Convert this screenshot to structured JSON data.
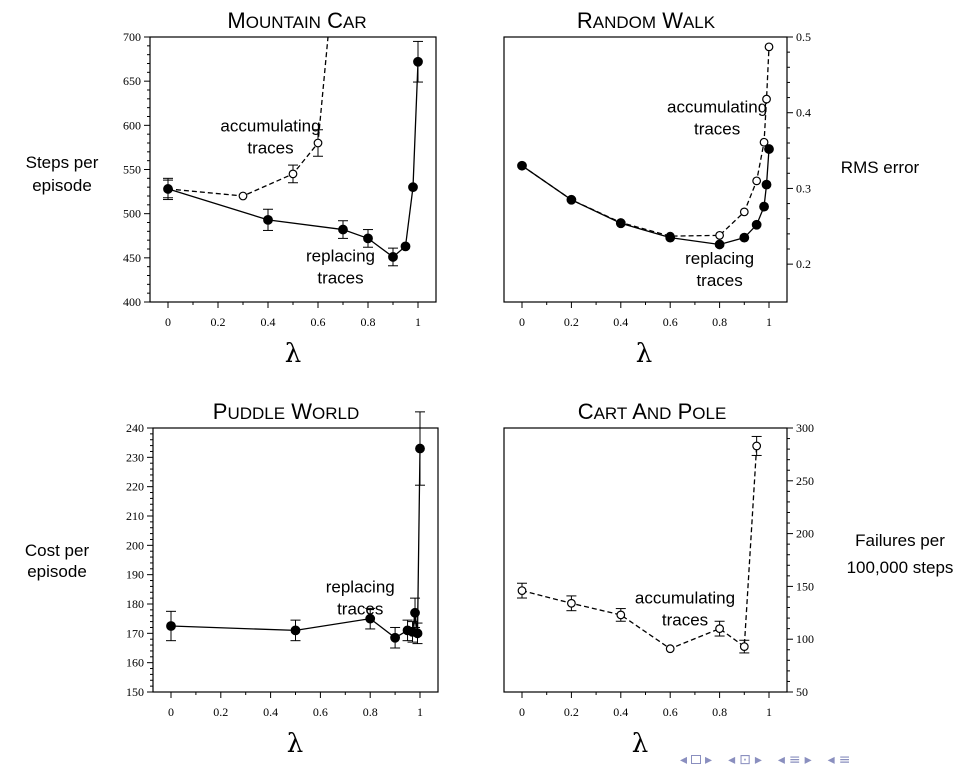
{
  "chart_data": [
    {
      "type": "line",
      "title": "Mountain Car",
      "xlabel": "λ",
      "ylabel_lines": [
        "Steps per",
        "episode"
      ],
      "xlim": [
        0,
        1
      ],
      "ylim": [
        400,
        700
      ],
      "x_ticks": [
        0,
        0.2,
        0.4,
        0.6,
        0.8,
        1
      ],
      "x_tick_labels": [
        "0",
        "0.2",
        "0.4",
        "0.6",
        "0.8",
        "1"
      ],
      "y_ticks": [
        400,
        450,
        500,
        550,
        600,
        650,
        700
      ],
      "y_tick_labels": [
        "400",
        "450",
        "500",
        "550",
        "600",
        "650",
        "700"
      ],
      "y_axis_side": "left",
      "series": [
        {
          "style": "dashed-open",
          "points": [
            [
              0,
              528
            ],
            [
              0.3,
              520
            ],
            [
              0.5,
              545
            ],
            [
              0.6,
              580
            ]
          ],
          "error": [
            10,
            0,
            10,
            15
          ],
          "continues_to": [
            0.64,
            700
          ]
        },
        {
          "style": "solid-filled",
          "points": [
            [
              0,
              528
            ],
            [
              0.4,
              493
            ],
            [
              0.7,
              482
            ],
            [
              0.8,
              472
            ],
            [
              0.9,
              451
            ],
            [
              0.95,
              463
            ],
            [
              0.98,
              530
            ],
            [
              1,
              672
            ]
          ],
          "error": [
            12,
            12,
            10,
            10,
            10,
            0,
            0,
            23
          ]
        }
      ],
      "annotations": [
        {
          "lines": [
            "accumulating",
            "traces"
          ],
          "x": 0.41,
          "y": 593
        },
        {
          "lines": [
            "replacing",
            "traces"
          ],
          "x": 0.69,
          "y": 446
        }
      ]
    },
    {
      "type": "line",
      "title": "Random Walk",
      "xlabel": "λ",
      "ylabel_lines": [
        "RMS error"
      ],
      "xlim": [
        0,
        1
      ],
      "ylim": [
        0.15,
        0.5
      ],
      "x_ticks": [
        0,
        0.2,
        0.4,
        0.6,
        0.8,
        1
      ],
      "x_tick_labels": [
        "0",
        "0.2",
        "0.4",
        "0.6",
        "0.8",
        "1"
      ],
      "y_ticks": [
        0.2,
        0.3,
        0.4,
        0.5
      ],
      "y_tick_labels": [
        "0.2",
        "0.3",
        "0.4",
        "0.5"
      ],
      "y_axis_side": "right",
      "series": [
        {
          "style": "dashed-open",
          "points": [
            [
              0,
              0.33
            ],
            [
              0.2,
              0.285
            ],
            [
              0.4,
              0.255
            ],
            [
              0.6,
              0.237
            ],
            [
              0.8,
              0.238
            ],
            [
              0.9,
              0.269
            ],
            [
              0.95,
              0.31
            ],
            [
              0.98,
              0.361
            ],
            [
              0.99,
              0.418
            ],
            [
              1,
              0.487
            ]
          ],
          "error": [
            0,
            0,
            0,
            0,
            0,
            0,
            0,
            0,
            0,
            0
          ]
        },
        {
          "style": "solid-filled",
          "points": [
            [
              0,
              0.33
            ],
            [
              0.2,
              0.285
            ],
            [
              0.4,
              0.254
            ],
            [
              0.6,
              0.235
            ],
            [
              0.8,
              0.226
            ],
            [
              0.9,
              0.235
            ],
            [
              0.95,
              0.252
            ],
            [
              0.98,
              0.276
            ],
            [
              0.99,
              0.305
            ],
            [
              1,
              0.352
            ]
          ],
          "error": [
            0,
            0,
            0,
            0,
            0,
            0,
            0,
            0,
            0,
            0
          ]
        }
      ],
      "annotations": [
        {
          "lines": [
            "accumulating",
            "traces"
          ],
          "x": 0.79,
          "y": 0.4
        },
        {
          "lines": [
            "replacing",
            "traces"
          ],
          "x": 0.8,
          "y": 0.2
        }
      ]
    },
    {
      "type": "line",
      "title": "Puddle World",
      "xlabel": "λ",
      "ylabel_lines": [
        "Cost per",
        "episode"
      ],
      "xlim": [
        0,
        1
      ],
      "ylim": [
        150,
        240
      ],
      "x_ticks": [
        0,
        0.2,
        0.4,
        0.6,
        0.8,
        1
      ],
      "x_tick_labels": [
        "0",
        "0.2",
        "0.4",
        "0.6",
        "0.8",
        "1"
      ],
      "y_ticks": [
        150,
        160,
        170,
        180,
        190,
        200,
        210,
        220,
        230,
        240
      ],
      "y_tick_labels": [
        "150",
        "160",
        "170",
        "180",
        "190",
        "200",
        "210",
        "220",
        "230",
        "240"
      ],
      "y_axis_side": "left",
      "series": [
        {
          "style": "solid-filled",
          "points": [
            [
              0,
              172.5
            ],
            [
              0.5,
              171
            ],
            [
              0.8,
              175
            ],
            [
              0.9,
              168.5
            ],
            [
              0.95,
              171
            ],
            [
              0.97,
              170.5
            ],
            [
              0.98,
              177
            ],
            [
              0.99,
              170
            ],
            [
              1,
              233
            ]
          ],
          "error": [
            5,
            3.5,
            3.5,
            3.5,
            3.5,
            3.5,
            5,
            3.5,
            12.5
          ]
        }
      ],
      "annotations": [
        {
          "lines": [
            "replacing",
            "traces"
          ],
          "x": 0.76,
          "y": 184
        }
      ]
    },
    {
      "type": "line",
      "title": "Cart and Pole",
      "xlabel": "λ",
      "ylabel_lines": [
        "Failures per",
        "100,000 steps"
      ],
      "xlim": [
        0,
        1
      ],
      "ylim": [
        50,
        300
      ],
      "x_ticks": [
        0,
        0.2,
        0.4,
        0.6,
        0.8,
        1
      ],
      "x_tick_labels": [
        "0",
        "0.2",
        "0.4",
        "0.6",
        "0.8",
        "1"
      ],
      "y_ticks": [
        50,
        100,
        150,
        200,
        250,
        300
      ],
      "y_tick_labels": [
        "50",
        "100",
        "150",
        "200",
        "250",
        "300"
      ],
      "y_axis_side": "right",
      "series": [
        {
          "style": "dashed-open",
          "points": [
            [
              0,
              146
            ],
            [
              0.2,
              134
            ],
            [
              0.4,
              123
            ],
            [
              0.6,
              91
            ],
            [
              0.8,
              110
            ],
            [
              0.9,
              93
            ],
            [
              0.95,
              283
            ]
          ],
          "error": [
            7,
            7,
            6,
            0,
            7,
            6,
            9
          ]
        }
      ],
      "annotations": [
        {
          "lines": [
            "accumulating",
            "traces"
          ],
          "x": 0.66,
          "y": 134
        }
      ]
    }
  ],
  "navigation": {
    "items": [
      "◂",
      "box",
      "▸",
      "◂",
      "⊡",
      "▸",
      "◂",
      "≡",
      "▸",
      "◂",
      "≡"
    ]
  }
}
